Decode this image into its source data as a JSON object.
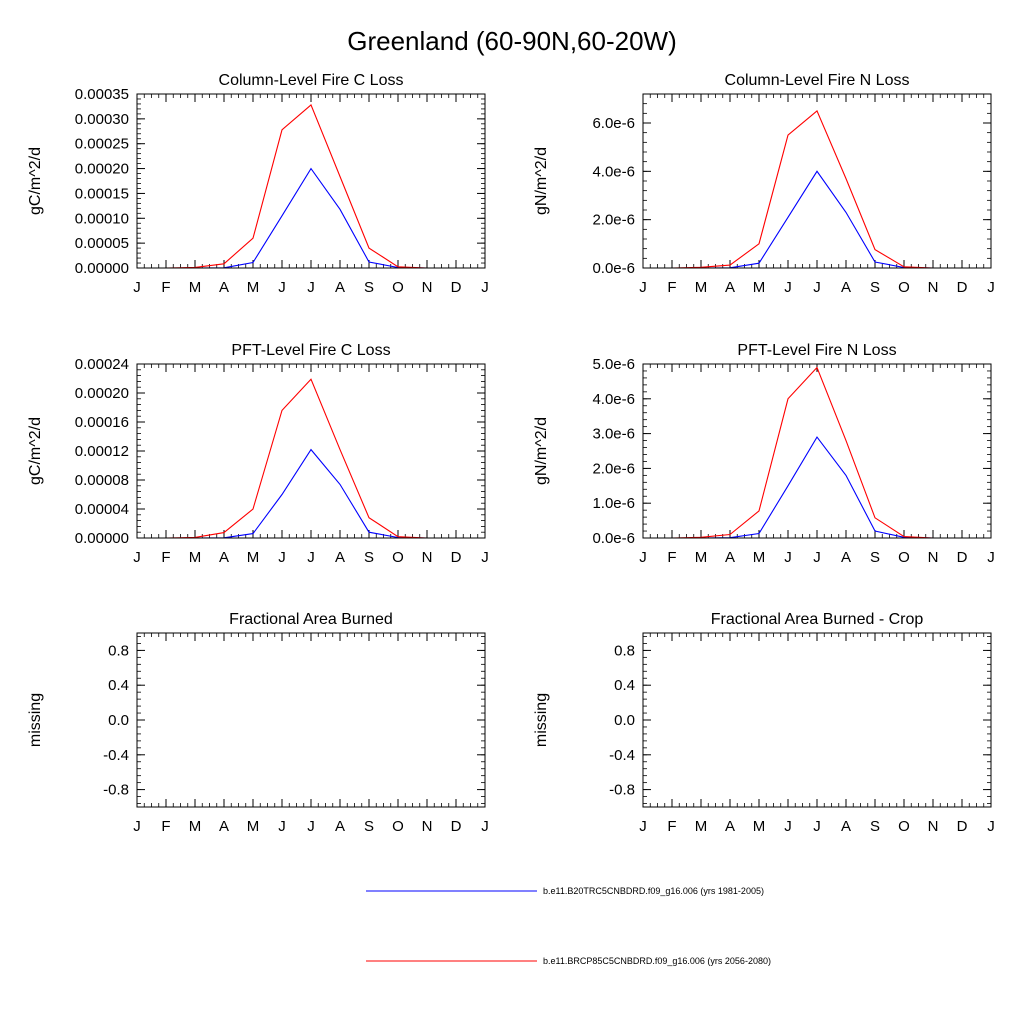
{
  "figure": {
    "title": "Greenland (60-90N,60-20W)"
  },
  "legend": [
    {
      "label": "b.e11.B20TRC5CNBDRD.f09_g16.006 (yrs 1981-2005)",
      "color": "#0000ff"
    },
    {
      "label": "b.e11.BRCP85C5CNBDRD.f09_g16.006 (yrs 2056-2080)",
      "color": "#ff0000"
    }
  ],
  "chart_data": [
    {
      "type": "line",
      "title": "Column-Level Fire C Loss",
      "ylabel": "gC/m^2/d",
      "categories": [
        "J",
        "F",
        "M",
        "A",
        "M",
        "J",
        "J",
        "A",
        "S",
        "O",
        "N",
        "D",
        "J"
      ],
      "ylim": [
        0,
        0.00035
      ],
      "yticks": [
        0,
        5e-05,
        0.0001,
        0.00015,
        0.0002,
        0.00025,
        0.0003,
        0.00035
      ],
      "yticklabels": [
        "0.00000",
        "0.00005",
        "0.00010",
        "0.00015",
        "0.00020",
        "0.00025",
        "0.00030",
        "0.00035"
      ],
      "series": [
        {
          "color": "#0000ff",
          "values": [
            0,
            0,
            0,
            5e-07,
            1.1e-05,
            0.000105,
            0.0002,
            0.000118,
            1.2e-05,
            1e-06,
            0,
            0,
            0
          ]
        },
        {
          "color": "#ff0000",
          "values": [
            0,
            0,
            1.2e-06,
            8.5e-06,
            6e-05,
            0.000278,
            0.000328,
            0.000184,
            4e-05,
            2.5e-06,
            0,
            0,
            0
          ]
        }
      ]
    },
    {
      "type": "line",
      "title": "Column-Level Fire N Loss",
      "ylabel": "gN/m^2/d",
      "categories": [
        "J",
        "F",
        "M",
        "A",
        "M",
        "J",
        "J",
        "A",
        "S",
        "O",
        "N",
        "D",
        "J"
      ],
      "ylim": [
        0,
        7.2e-06
      ],
      "yticks": [
        0,
        2e-06,
        4e-06,
        6e-06
      ],
      "yticklabels": [
        "0.0e-6",
        "2.0e-6",
        "4.0e-6",
        "6.0e-6"
      ],
      "series": [
        {
          "color": "#0000ff",
          "values": [
            0,
            0,
            0,
            1e-08,
            2e-07,
            2.1e-06,
            4e-06,
            2.3e-06,
            2.5e-07,
            2e-08,
            0,
            0,
            0
          ]
        },
        {
          "color": "#ff0000",
          "values": [
            0,
            0,
            3e-08,
            1.2e-07,
            1e-06,
            5.5e-06,
            6.5e-06,
            3.7e-06,
            7.6e-07,
            5e-08,
            0,
            0,
            0
          ]
        }
      ]
    },
    {
      "type": "line",
      "title": "PFT-Level Fire C Loss",
      "ylabel": "gC/m^2/d",
      "categories": [
        "J",
        "F",
        "M",
        "A",
        "M",
        "J",
        "J",
        "A",
        "S",
        "O",
        "N",
        "D",
        "J"
      ],
      "ylim": [
        0,
        0.00024
      ],
      "yticks": [
        0,
        4e-05,
        8e-05,
        0.00012,
        0.00016,
        0.0002,
        0.00024
      ],
      "yticklabels": [
        "0.00000",
        "0.00004",
        "0.00008",
        "0.00012",
        "0.00016",
        "0.00020",
        "0.00024"
      ],
      "series": [
        {
          "color": "#0000ff",
          "values": [
            0,
            0,
            0,
            3e-07,
            6e-06,
            6e-05,
            0.000122,
            7.4e-05,
            8e-06,
            7e-07,
            0,
            0,
            0
          ]
        },
        {
          "color": "#ff0000",
          "values": [
            0,
            0,
            8e-07,
            7.5e-06,
            4e-05,
            0.000176,
            0.000219,
            0.000122,
            2.8e-05,
            1.8e-06,
            0,
            0,
            0
          ]
        }
      ]
    },
    {
      "type": "line",
      "title": "PFT-Level Fire N Loss",
      "ylabel": "gN/m^2/d",
      "categories": [
        "J",
        "F",
        "M",
        "A",
        "M",
        "J",
        "J",
        "A",
        "S",
        "O",
        "N",
        "D",
        "J"
      ],
      "ylim": [
        0,
        5e-06
      ],
      "yticks": [
        0,
        1e-06,
        2e-06,
        3e-06,
        4e-06,
        5e-06
      ],
      "yticklabels": [
        "0.0e-6",
        "1.0e-6",
        "2.0e-6",
        "3.0e-6",
        "4.0e-6",
        "5.0e-6"
      ],
      "series": [
        {
          "color": "#0000ff",
          "values": [
            0,
            0,
            0,
            1e-08,
            1.3e-07,
            1.5e-06,
            2.9e-06,
            1.8e-06,
            2e-07,
            2e-08,
            0,
            0,
            0
          ]
        },
        {
          "color": "#ff0000",
          "values": [
            0,
            0,
            2e-08,
            1e-07,
            7.8e-07,
            4e-06,
            4.9e-06,
            2.8e-06,
            5.8e-07,
            4e-08,
            0,
            0,
            0
          ]
        }
      ]
    },
    {
      "type": "line",
      "title": "Fractional Area Burned",
      "ylabel": "missing",
      "categories": [
        "J",
        "F",
        "M",
        "A",
        "M",
        "J",
        "J",
        "A",
        "S",
        "O",
        "N",
        "D",
        "J"
      ],
      "ylim": [
        -1,
        1
      ],
      "yticks": [
        -0.8,
        -0.4,
        0,
        0.4,
        0.8
      ],
      "yticklabels": [
        "-0.8",
        "-0.4",
        "0.0",
        "0.4",
        "0.8"
      ],
      "series": []
    },
    {
      "type": "line",
      "title": "Fractional Area Burned - Crop",
      "ylabel": "missing",
      "categories": [
        "J",
        "F",
        "M",
        "A",
        "M",
        "J",
        "J",
        "A",
        "S",
        "O",
        "N",
        "D",
        "J"
      ],
      "ylim": [
        -1,
        1
      ],
      "yticks": [
        -0.8,
        -0.4,
        0,
        0.4,
        0.8
      ],
      "yticklabels": [
        "-0.8",
        "-0.4",
        "0.0",
        "0.4",
        "0.8"
      ],
      "series": []
    }
  ]
}
